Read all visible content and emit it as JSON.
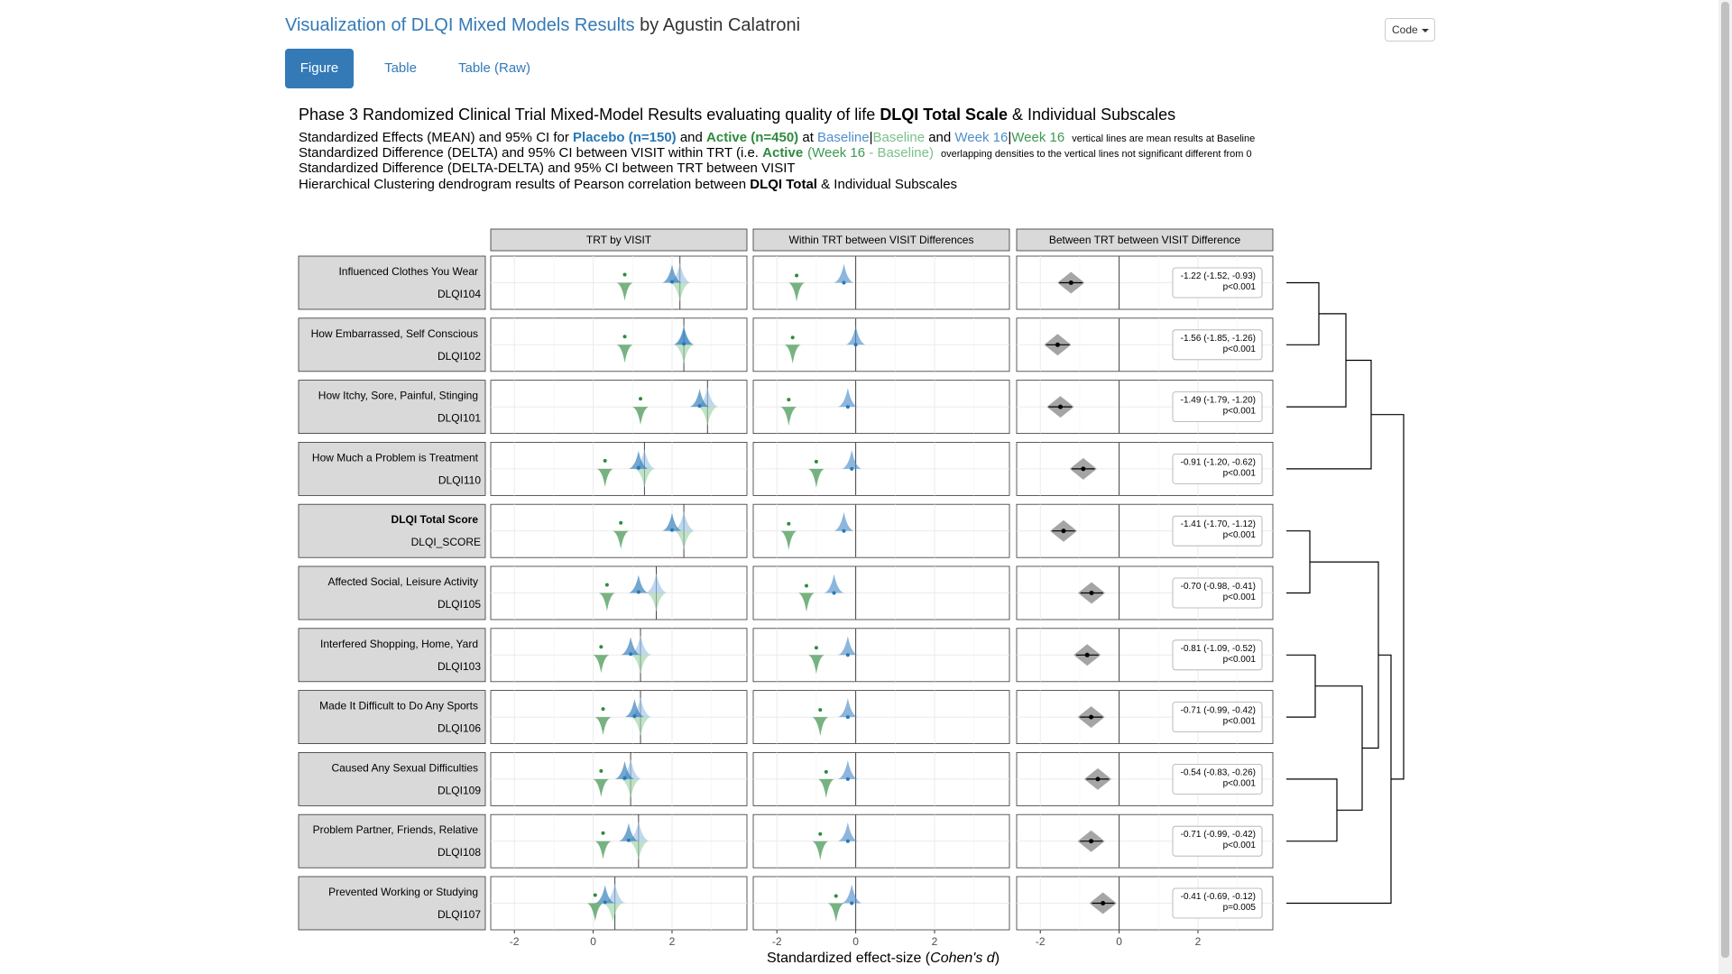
{
  "page": {
    "title_link": "Visualization of DLQI Mixed Models Results",
    "title_rest": " by Agustin Calatroni",
    "code_button": "Code"
  },
  "tabs": [
    {
      "label": "Figure",
      "active": true
    },
    {
      "label": "Table",
      "active": false
    },
    {
      "label": "Table (Raw)",
      "active": false
    }
  ],
  "figure": {
    "heading": {
      "pre": "Phase 3 Randomized Clinical Trial Mixed-Model Results evaluating quality of life ",
      "bold": "DLQI Total Scale",
      "post": " & Individual Subscales"
    },
    "line1": {
      "a": "Standardized Effects (MEAN) and 95% CI for ",
      "placebo": "Placebo (n=150)",
      "b": " and ",
      "active": "Active (n=450)",
      "c": " at ",
      "baseline1": "Baseline",
      "sep1": "|",
      "baseline2": "Baseline",
      "d": " and ",
      "week1": "Week 16",
      "sep2": "|",
      "week2": "Week 16",
      "note": "vertical lines are mean results at Baseline"
    },
    "line2": {
      "a": "Standardized Difference (DELTA) and 95% CI between VISIT within TRT (i.e. ",
      "active": "Active",
      "b": "(Week 16",
      "c": " - ",
      "d": "Baseline)",
      "note": "overlapping densities to the vertical lines not significant different from 0"
    },
    "line3": "Standardized Difference (DELTA-DELTA) and 95% CI between TRT between VISIT",
    "line4": {
      "pre": "Hierarchical Clustering dendrogram results of Pearson correlation between ",
      "bold": "DLQI Total",
      "post": " & Individual Subscales"
    },
    "panel_titles": [
      "TRT by VISIT",
      "Within TRT between VISIT Differences",
      "Between TRT between VISIT Difference"
    ],
    "x_axis_title": "Standardized effect-size (",
    "x_axis_title_italic": "Cohen's d",
    "x_axis_title_end": ")",
    "tick_labels": [
      "-2",
      "0",
      "2"
    ],
    "colors": {
      "placebo": "#2878b5",
      "active": "#2e8b3e",
      "baseline_blue": "#4f8fcb",
      "baseline_green": "#7ac08a",
      "week_blue": "#4f8fcb",
      "week_green": "#3c9a52",
      "strip_bg": "#d9d9d9",
      "diamond": "#7f7f7f"
    }
  },
  "chart_data": {
    "type": "scatter",
    "title": "Phase 3 Randomized Clinical Trial Mixed-Model Results evaluating quality of life DLQI Total Scale & Individual Subscales",
    "xlabel": "Standardized effect-size (Cohen's d)",
    "xlim": [
      -2.6,
      3.9
    ],
    "rows": [
      {
        "label": "Influenced Clothes You Wear",
        "code": "DLQI104",
        "bold": false,
        "trt_visit": {
          "baseline_line": 2.2,
          "placebo_base": 2.0,
          "active_base": 2.2,
          "placebo_wk16": 0.8,
          "active_wk16": 2.2
        },
        "within": {
          "placebo": -0.3,
          "active": -1.5
        },
        "between": {
          "est": -1.22,
          "ci_low": -1.52,
          "ci_high": -0.93,
          "p": "p<0.001"
        },
        "label_text": "-1.22 (-1.52, -0.93)"
      },
      {
        "label": "How Embarrassed, Self Conscious",
        "code": "DLQI102",
        "bold": false,
        "trt_visit": {
          "baseline_line": 2.3,
          "placebo_base": 2.3,
          "active_base": 2.3,
          "placebo_wk16": 0.8,
          "active_wk16": 2.3
        },
        "within": {
          "placebo": 0.0,
          "active": -1.6
        },
        "between": {
          "est": -1.56,
          "ci_low": -1.85,
          "ci_high": -1.26,
          "p": "p<0.001"
        },
        "label_text": "-1.56 (-1.85, -1.26)"
      },
      {
        "label": "How Itchy, Sore, Painful, Stinging",
        "code": "DLQI101",
        "bold": false,
        "trt_visit": {
          "baseline_line": 2.9,
          "placebo_base": 2.7,
          "active_base": 2.9,
          "placebo_wk16": 1.2,
          "active_wk16": 2.9
        },
        "within": {
          "placebo": -0.2,
          "active": -1.7
        },
        "between": {
          "est": -1.49,
          "ci_low": -1.79,
          "ci_high": -1.2,
          "p": "p<0.001"
        },
        "label_text": "-1.49 (-1.79, -1.20)"
      },
      {
        "label": "How Much a Problem is Treatment",
        "code": "DLQI110",
        "bold": false,
        "trt_visit": {
          "baseline_line": 1.3,
          "placebo_base": 1.15,
          "active_base": 1.3,
          "placebo_wk16": 0.3,
          "active_wk16": 1.3
        },
        "within": {
          "placebo": -0.1,
          "active": -1.0
        },
        "between": {
          "est": -0.91,
          "ci_low": -1.2,
          "ci_high": -0.62,
          "p": "p<0.001"
        },
        "label_text": "-0.91 (-1.20, -0.62)"
      },
      {
        "label": "DLQI Total Score",
        "code": "DLQI_SCORE",
        "bold": true,
        "trt_visit": {
          "baseline_line": 2.3,
          "placebo_base": 2.0,
          "active_base": 2.3,
          "placebo_wk16": 0.7,
          "active_wk16": 2.3
        },
        "within": {
          "placebo": -0.3,
          "active": -1.7
        },
        "between": {
          "est": -1.41,
          "ci_low": -1.7,
          "ci_high": -1.12,
          "p": "p<0.001"
        },
        "label_text": "-1.41 (-1.70, -1.12)"
      },
      {
        "label": "Affected Social, Leisure Activity",
        "code": "DLQI105",
        "bold": false,
        "trt_visit": {
          "baseline_line": 1.6,
          "placebo_base": 1.15,
          "active_base": 1.6,
          "placebo_wk16": 0.35,
          "active_wk16": 1.6
        },
        "within": {
          "placebo": -0.55,
          "active": -1.25
        },
        "between": {
          "est": -0.7,
          "ci_low": -0.98,
          "ci_high": -0.41,
          "p": "p<0.001"
        },
        "label_text": "-0.70 (-0.98, -0.41)"
      },
      {
        "label": "Interfered Shopping, Home, Yard",
        "code": "DLQI103",
        "bold": false,
        "trt_visit": {
          "baseline_line": 1.2,
          "placebo_base": 0.95,
          "active_base": 1.2,
          "placebo_wk16": 0.2,
          "active_wk16": 1.2
        },
        "within": {
          "placebo": -0.2,
          "active": -1.0
        },
        "between": {
          "est": -0.81,
          "ci_low": -1.09,
          "ci_high": -0.52,
          "p": "p<0.001"
        },
        "label_text": "-0.81 (-1.09, -0.52)"
      },
      {
        "label": "Made It Difficult to Do Any Sports",
        "code": "DLQI106",
        "bold": false,
        "trt_visit": {
          "baseline_line": 1.2,
          "placebo_base": 1.05,
          "active_base": 1.2,
          "placebo_wk16": 0.25,
          "active_wk16": 1.2
        },
        "within": {
          "placebo": -0.2,
          "active": -0.9
        },
        "between": {
          "est": -0.71,
          "ci_low": -0.99,
          "ci_high": -0.42,
          "p": "p<0.001"
        },
        "label_text": "-0.71 (-0.99, -0.42)"
      },
      {
        "label": "Caused Any Sexual Difficulties",
        "code": "DLQI109",
        "bold": false,
        "trt_visit": {
          "baseline_line": 0.95,
          "placebo_base": 0.8,
          "active_base": 0.95,
          "placebo_wk16": 0.2,
          "active_wk16": 0.95
        },
        "within": {
          "placebo": -0.2,
          "active": -0.75
        },
        "between": {
          "est": -0.54,
          "ci_low": -0.83,
          "ci_high": -0.26,
          "p": "p<0.001"
        },
        "label_text": "-0.54 (-0.83, -0.26)"
      },
      {
        "label": "Problem Partner, Friends, Relative",
        "code": "DLQI108",
        "bold": false,
        "trt_visit": {
          "baseline_line": 1.15,
          "placebo_base": 0.9,
          "active_base": 1.15,
          "placebo_wk16": 0.25,
          "active_wk16": 1.15
        },
        "within": {
          "placebo": -0.2,
          "active": -0.9
        },
        "between": {
          "est": -0.71,
          "ci_low": -0.99,
          "ci_high": -0.42,
          "p": "p<0.001"
        },
        "label_text": "-0.71 (-0.99, -0.42)"
      },
      {
        "label": "Prevented Working or Studying",
        "code": "DLQI107",
        "bold": false,
        "trt_visit": {
          "baseline_line": 0.55,
          "placebo_base": 0.3,
          "active_base": 0.55,
          "placebo_wk16": 0.05,
          "active_wk16": 0.5
        },
        "within": {
          "placebo": -0.1,
          "active": -0.5
        },
        "between": {
          "est": -0.41,
          "ci_low": -0.69,
          "ci_high": -0.12,
          "p": "p=0.005"
        },
        "label_text": "-0.41 (-0.69, -0.12)"
      }
    ],
    "dendrogram": {
      "type": "hierarchical",
      "merges": [
        [
          0,
          1
        ],
        [
          0,
          2
        ],
        [
          0,
          3
        ],
        [
          4,
          5
        ],
        [
          6,
          7
        ],
        [
          8,
          9
        ],
        [
          6,
          8
        ],
        [
          4,
          6
        ],
        [
          4,
          10
        ],
        [
          0,
          4
        ]
      ]
    }
  }
}
